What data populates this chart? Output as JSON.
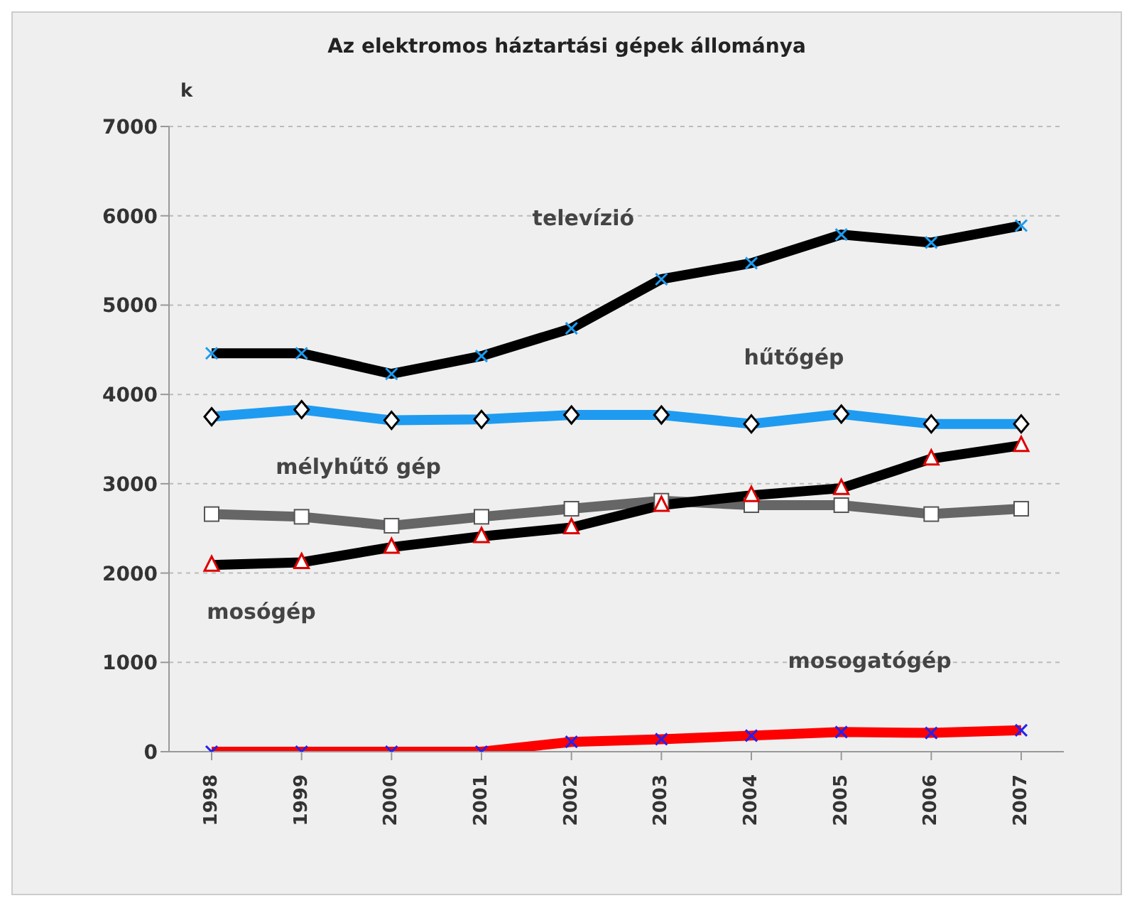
{
  "chart_data": {
    "type": "line",
    "title": "Az elektromos háztartási gépek állománya",
    "ylabel": "k",
    "categories": [
      "1998",
      "1999",
      "2000",
      "2001",
      "2002",
      "2003",
      "2004",
      "2005",
      "2006",
      "2007"
    ],
    "series": [
      {
        "name": "televízió",
        "color": "#000000",
        "marker": "cross",
        "values": [
          4460,
          4460,
          4230,
          4430,
          4740,
          5290,
          5470,
          5790,
          5700,
          5890
        ]
      },
      {
        "name": "hűtőgép",
        "color": "#1e9bf0",
        "marker": "diamond",
        "values": [
          3750,
          3830,
          3710,
          3720,
          3770,
          3770,
          3670,
          3780,
          3670,
          3670
        ]
      },
      {
        "name": "mélyhűtő gép",
        "color": "#666666",
        "marker": "square",
        "values": [
          2660,
          2630,
          2530,
          2630,
          2720,
          2810,
          2760,
          2760,
          2660,
          2720
        ]
      },
      {
        "name": "mosógép",
        "color": "#000000",
        "marker": "triangle",
        "values": [
          2090,
          2120,
          2290,
          2410,
          2510,
          2760,
          2870,
          2950,
          3280,
          3430
        ]
      },
      {
        "name": "mosogatógép",
        "color": "#ff0000",
        "marker": "cross",
        "values": [
          0,
          0,
          0,
          0,
          110,
          140,
          180,
          220,
          210,
          240
        ]
      }
    ],
    "ylim": [
      0,
      7000
    ],
    "yticks": [
      0,
      1000,
      2000,
      3000,
      4000,
      5000,
      6000,
      7000
    ],
    "grid": "y",
    "legend": false
  }
}
